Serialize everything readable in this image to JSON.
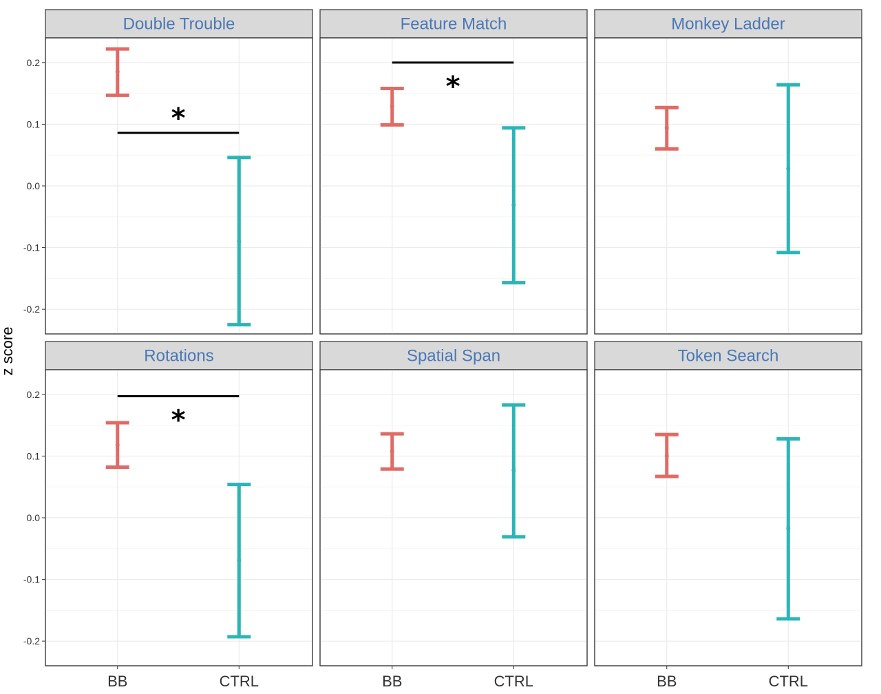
{
  "chart_data": {
    "type": "errorbar",
    "ylabel": "z score",
    "ylim": [
      -0.24,
      0.24
    ],
    "yticks": [
      -0.2,
      -0.1,
      0.0,
      0.1,
      0.2
    ],
    "ytick_labels": [
      "-0.2",
      "-0.1",
      "0.0",
      "0.1",
      "0.2"
    ],
    "categories": [
      "BB",
      "CTRL"
    ],
    "group_colors": {
      "BB": "#e06b66",
      "CTRL": "#2bb5b8"
    },
    "grid": true,
    "panels": [
      {
        "title": "Double Trouble",
        "bars": [
          {
            "group": "BB",
            "mean": 0.185,
            "low": 0.147,
            "high": 0.222
          },
          {
            "group": "CTRL",
            "mean": -0.09,
            "low": -0.225,
            "high": 0.046
          }
        ],
        "significance": {
          "y": 0.086,
          "label": "*",
          "star_position": "above"
        }
      },
      {
        "title": "Feature Match",
        "bars": [
          {
            "group": "BB",
            "mean": 0.129,
            "low": 0.099,
            "high": 0.158
          },
          {
            "group": "CTRL",
            "mean": -0.031,
            "low": -0.157,
            "high": 0.094
          }
        ],
        "significance": {
          "y": 0.2,
          "label": "*",
          "star_position": "below"
        }
      },
      {
        "title": "Monkey Ladder",
        "bars": [
          {
            "group": "BB",
            "mean": 0.094,
            "low": 0.06,
            "high": 0.127
          },
          {
            "group": "CTRL",
            "mean": 0.028,
            "low": -0.108,
            "high": 0.164
          }
        ],
        "significance": null
      },
      {
        "title": "Rotations",
        "bars": [
          {
            "group": "BB",
            "mean": 0.118,
            "low": 0.082,
            "high": 0.154
          },
          {
            "group": "CTRL",
            "mean": -0.069,
            "low": -0.193,
            "high": 0.054
          }
        ],
        "significance": {
          "y": 0.197,
          "label": "*",
          "star_position": "below"
        }
      },
      {
        "title": "Spatial Span",
        "bars": [
          {
            "group": "BB",
            "mean": 0.108,
            "low": 0.079,
            "high": 0.136
          },
          {
            "group": "CTRL",
            "mean": 0.077,
            "low": -0.031,
            "high": 0.183
          }
        ],
        "significance": null
      },
      {
        "title": "Token Search",
        "bars": [
          {
            "group": "BB",
            "mean": 0.1,
            "low": 0.067,
            "high": 0.135
          },
          {
            "group": "CTRL",
            "mean": -0.017,
            "low": -0.164,
            "high": 0.128
          }
        ],
        "significance": null
      }
    ]
  }
}
